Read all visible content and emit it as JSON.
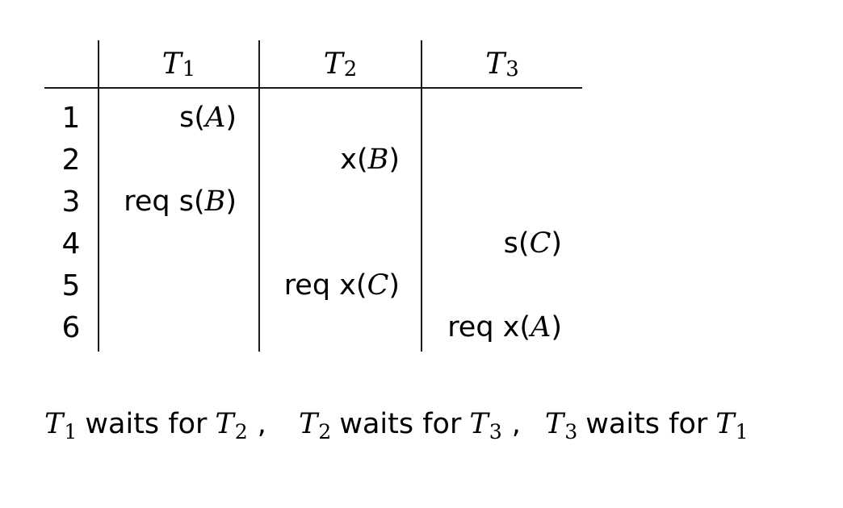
{
  "table": {
    "headers": [
      {
        "symbol": "T",
        "index": "1"
      },
      {
        "symbol": "T",
        "index": "2"
      },
      {
        "symbol": "T",
        "index": "3"
      }
    ],
    "rows": [
      {
        "step": "1",
        "t1": {
          "op": "s",
          "var": "A"
        },
        "t2": null,
        "t3": null
      },
      {
        "step": "2",
        "t1": null,
        "t2": {
          "op": "x",
          "var": "B"
        },
        "t3": null
      },
      {
        "step": "3",
        "t1": {
          "op": "req s",
          "var": "B"
        },
        "t2": null,
        "t3": null
      },
      {
        "step": "4",
        "t1": null,
        "t2": null,
        "t3": {
          "op": "s",
          "var": "C"
        }
      },
      {
        "step": "5",
        "t1": null,
        "t2": {
          "op": "req x",
          "var": "C"
        },
        "t3": null
      },
      {
        "step": "6",
        "t1": null,
        "t2": null,
        "t3": {
          "op": "req x",
          "var": "A"
        }
      }
    ]
  },
  "waits_for": [
    {
      "waiter": {
        "symbol": "T",
        "index": "1"
      },
      "phrase": "waits for",
      "holder": {
        "symbol": "T",
        "index": "2"
      },
      "sep": ","
    },
    {
      "waiter": {
        "symbol": "T",
        "index": "2"
      },
      "phrase": "waits for",
      "holder": {
        "symbol": "T",
        "index": "3"
      },
      "sep": ","
    },
    {
      "waiter": {
        "symbol": "T",
        "index": "3"
      },
      "phrase": "waits for",
      "holder": {
        "symbol": "T",
        "index": "1"
      },
      "sep": ""
    }
  ]
}
